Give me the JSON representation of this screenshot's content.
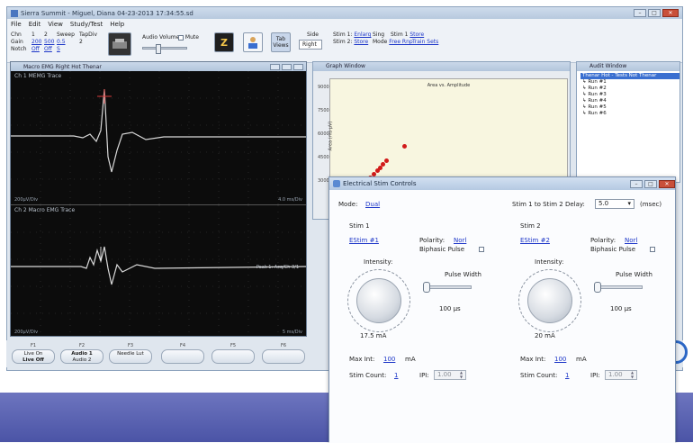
{
  "app": {
    "title": "Sierra Summit - Miguel, Diana 04-23-2013 17:34:55.sd",
    "menu": [
      "File",
      "Edit",
      "View",
      "Study/Test",
      "Help"
    ],
    "toolbar": {
      "grid_headers": [
        "1",
        "2",
        "Sweep",
        "TimeDiv"
      ],
      "grid_rows": [
        {
          "label": "Chn",
          "values": [
            "1",
            "2",
            "Sweep",
            "TapDiv"
          ]
        },
        {
          "label": "Gain",
          "values": [
            "200",
            "500",
            "0.5",
            "2"
          ]
        },
        {
          "label": "Notch",
          "values": [
            "Off",
            "Off",
            "S",
            ""
          ]
        }
      ],
      "audio_volume": "Audio Volume",
      "mute": "Mute",
      "tab_views": "Tab Views",
      "side_label": "Side",
      "side_value": "Right",
      "stim1_label": "Stim 1:",
      "stim1_value": "Enlarg",
      "stim2_label": "Stim 2:",
      "stim2_value": "Store",
      "stim1_mode": "Sing",
      "stim2_mode": "Mode",
      "stim2_mode_value": "Free Rnp",
      "stim1_sub": "Stim 1",
      "stim1_sub_value": "Store",
      "stim2_sub_value": "Train Sets"
    }
  },
  "emg_panel": {
    "title": "Macro EMG Right Hot Thenar",
    "trace1_label": "Ch 1 MEMG Trace",
    "trace2_label": "Ch 2 Macro EMG Trace",
    "trace1_corner_left": "200µV/Div",
    "trace1_corner_right": "4.0 ms/Div",
    "trace2_corner_left": "200µV/Div",
    "trace2_corner_right": "5 ms/Div",
    "trace2_marker": "Peak 1: Acq/Ch 3/1"
  },
  "graph_panel": {
    "title": "Graph Window",
    "plot_title": "Area vs. Amplitude",
    "ylabel": "Area (ms·µV)",
    "yticks": [
      "9000",
      "7500",
      "6000",
      "4500",
      "3000"
    ]
  },
  "audit_panel": {
    "title": "Audit Window",
    "root": "Thenar Hot - Tests Not Thenar",
    "items": [
      "Run #1",
      "Run #2",
      "Run #3",
      "Run #4",
      "Run #5",
      "Run #6"
    ]
  },
  "fkeys": [
    {
      "num": "F1",
      "line1": "Live On",
      "line2": "Live Off"
    },
    {
      "num": "F2",
      "line1": "Audio 1",
      "line2": "Audio 2"
    },
    {
      "num": "F3",
      "line1": "Needle Lut",
      "line2": ""
    },
    {
      "num": "F4",
      "line1": "",
      "line2": ""
    },
    {
      "num": "F5",
      "line1": "",
      "line2": ""
    },
    {
      "num": "F6",
      "line1": "",
      "line2": ""
    }
  ],
  "dialog": {
    "title": "Electrical Stim Controls",
    "mode_label": "Mode:",
    "mode_value": "Dual",
    "delay_label": "Stim 1 to Stim 2 Delay:",
    "delay_value": "5.0",
    "delay_unit": "(msec)",
    "stim1": {
      "header": "Stim 1",
      "device": "EStim #1",
      "polarity_label": "Polarity:",
      "polarity_value": "Norl",
      "biphasic": "Biphasic Pulse",
      "intensity_label": "Intensity:",
      "intensity_value": "17.5 mA",
      "pulse_label": "Pulse Width",
      "pulse_value": "100 µs",
      "maxint_label": "Max Int:",
      "maxint_value": "100",
      "maxint_unit": "mA",
      "count_label": "Stim Count:",
      "count_value": "1",
      "ipi_label": "IPI:",
      "ipi_value": "1.00"
    },
    "stim2": {
      "header": "Stim 2",
      "device": "EStim #2",
      "polarity_label": "Polarity:",
      "polarity_value": "Norl",
      "biphasic": "Biphasic Pulse",
      "intensity_label": "Intensity:",
      "intensity_value": "20 mA",
      "pulse_label": "Pulse Width",
      "pulse_value": "100 µs",
      "maxint_label": "Max Int:",
      "maxint_value": "100",
      "maxint_unit": "mA",
      "count_label": "Stim Count:",
      "count_value": "1",
      "ipi_label": "IPI:",
      "ipi_value": "1.00"
    }
  }
}
